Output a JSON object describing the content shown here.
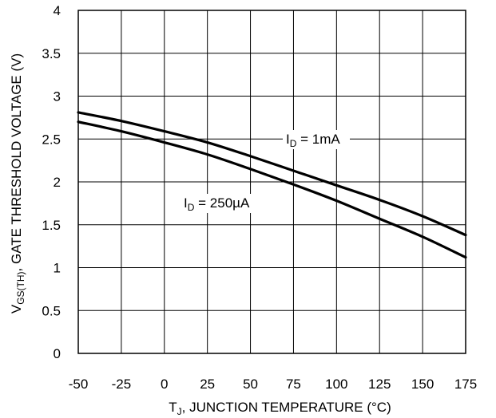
{
  "chart_data": {
    "type": "line",
    "xlabel": {
      "main": "T",
      "sub": "J",
      "rest": ", JUNCTION TEMPERATURE (°C)"
    },
    "ylabel": {
      "main": "V",
      "sub": "GS(TH)",
      "rest": ", GATE THRESHOLD VOLTAGE (V)"
    },
    "xlim": [
      -50,
      175
    ],
    "ylim": [
      0,
      4
    ],
    "x_ticks": [
      "-50",
      "-25",
      "0",
      "25",
      "50",
      "75",
      "100",
      "125",
      "150",
      "175"
    ],
    "y_ticks": [
      "0",
      "0.5",
      "1",
      "1.5",
      "2",
      "2.5",
      "3",
      "3.5",
      "4"
    ],
    "grid": true,
    "series": [
      {
        "name": "I_D = 1mA",
        "label": {
          "main": "I",
          "sub": "D",
          "rest": " = 1mA"
        },
        "x": [
          -50,
          -25,
          0,
          25,
          50,
          75,
          100,
          125,
          150,
          175
        ],
        "y": [
          2.81,
          2.71,
          2.59,
          2.46,
          2.3,
          2.13,
          1.96,
          1.79,
          1.6,
          1.38
        ]
      },
      {
        "name": "I_D = 250µA",
        "label": {
          "main": "I",
          "sub": "D",
          "rest": " = 250µA"
        },
        "x": [
          -50,
          -25,
          0,
          25,
          50,
          75,
          100,
          125,
          150,
          175
        ],
        "y": [
          2.7,
          2.59,
          2.46,
          2.32,
          2.15,
          1.97,
          1.78,
          1.57,
          1.36,
          1.12
        ]
      }
    ]
  }
}
